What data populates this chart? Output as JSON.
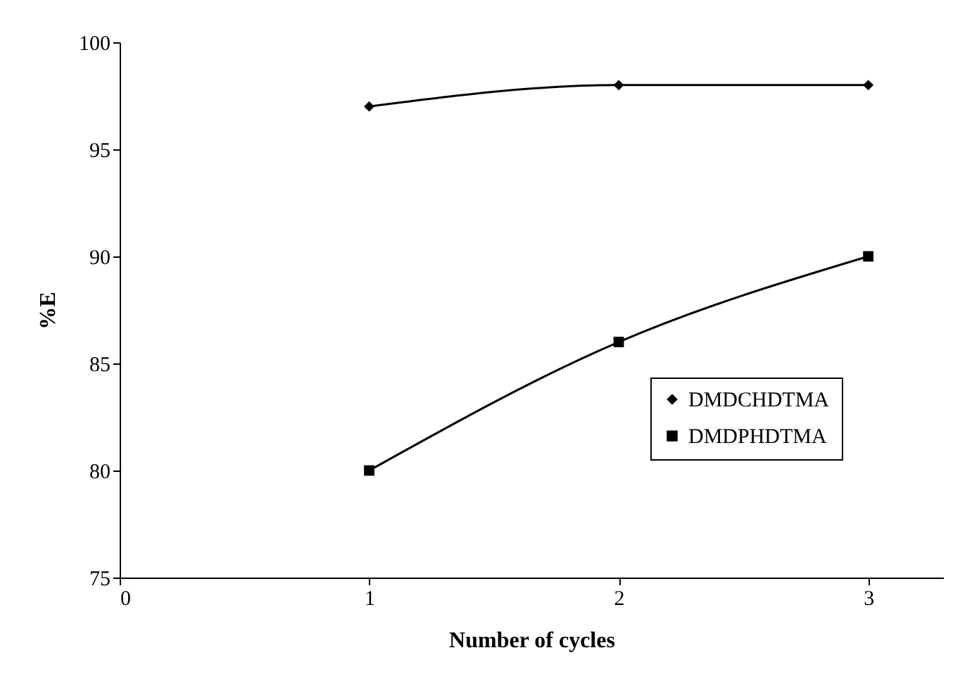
{
  "chart_data": {
    "type": "line",
    "xlabel": "Number of cycles",
    "ylabel": "%E",
    "x": [
      1,
      2,
      3
    ],
    "series": [
      {
        "name": "DMDCHDTMA",
        "color": "#000000",
        "marker": "diamond",
        "values": [
          97,
          98,
          98
        ]
      },
      {
        "name": "DMDPHDTMA",
        "color": "#000000",
        "marker": "square",
        "values": [
          80,
          86,
          90
        ]
      }
    ],
    "xlim": [
      0,
      3.3
    ],
    "xticks": [
      0,
      1,
      2,
      3
    ],
    "ylim": [
      75,
      100
    ],
    "yticks": [
      75,
      80,
      85,
      90,
      95,
      100
    ],
    "grid": false,
    "legend": "right",
    "line_style": "solid"
  }
}
